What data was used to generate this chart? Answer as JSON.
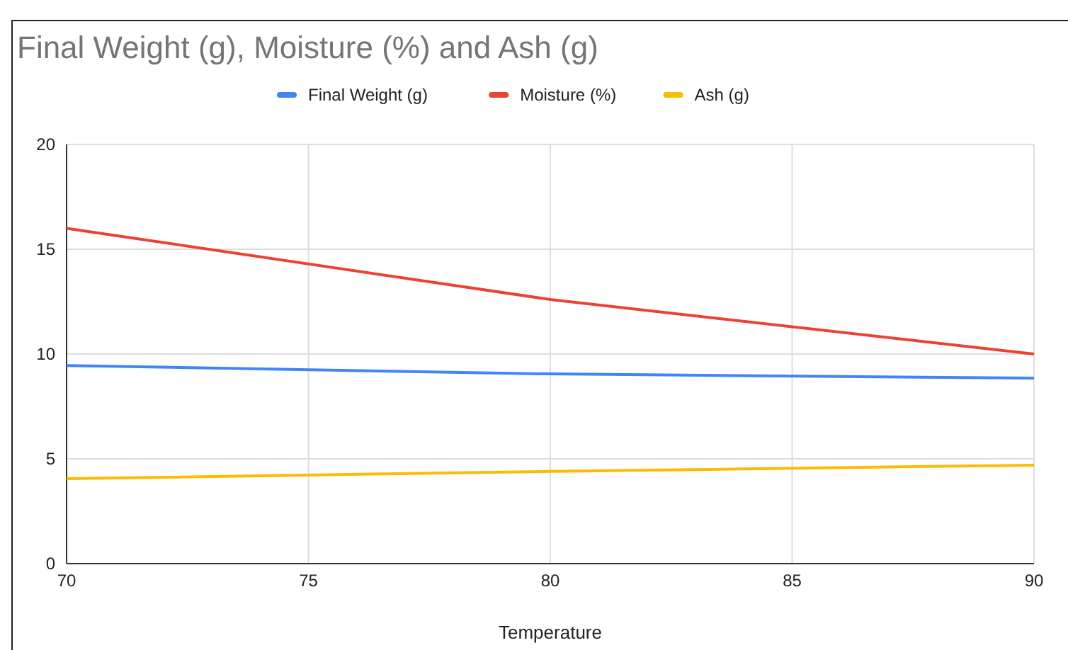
{
  "chart_data": {
    "type": "line",
    "title": "Final Weight (g), Moisture (%) and Ash (g)",
    "xlabel": "Temperature",
    "x": [
      70,
      80,
      90
    ],
    "series": [
      {
        "name": "Final Weight (g)",
        "color": "#4285f4",
        "values": [
          9.45,
          9.05,
          8.85
        ]
      },
      {
        "name": "Moisture (%)",
        "color": "#ea4335",
        "values": [
          16,
          12.6,
          10
        ]
      },
      {
        "name": "Ash (g)",
        "color": "#fbbc04",
        "values": [
          4.05,
          4.4,
          4.7
        ]
      }
    ],
    "xlim": [
      70,
      90
    ],
    "xticks": [
      70,
      75,
      80,
      85,
      90
    ],
    "ylim": [
      0,
      20
    ],
    "yticks": [
      0,
      5,
      10,
      15,
      20
    ],
    "grid": true,
    "legend": "top",
    "marker": "none",
    "line_style": "solid"
  }
}
